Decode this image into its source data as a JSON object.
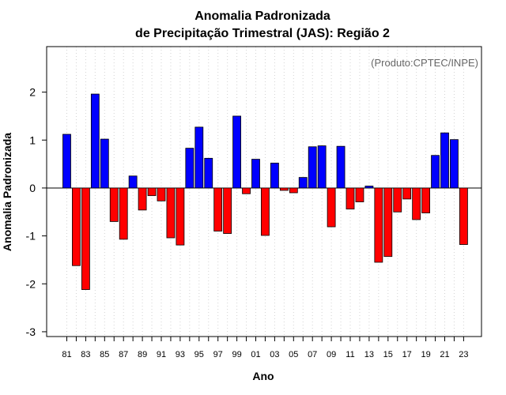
{
  "chart_data": {
    "type": "bar",
    "title_line1": "Anomalia Padronizada",
    "title_line2": "de Precipitação Trimestral (JAS): Região 2",
    "xlabel": "Ano",
    "ylabel": "Anomalia Padronizada",
    "annotation": "(Produto:CPTEC/INPE)",
    "ylim": [
      -3.1,
      2.95
    ],
    "yticks": [
      2,
      1,
      0,
      -1,
      -2,
      -3
    ],
    "xtick_labels": [
      "81",
      "83",
      "85",
      "87",
      "89",
      "91",
      "93",
      "95",
      "97",
      "99",
      "01",
      "03",
      "05",
      "07",
      "09",
      "11",
      "13",
      "15",
      "17",
      "19",
      "21",
      "23"
    ],
    "grid": "vertical dotted",
    "positive_color": "#0000ff",
    "negative_color": "#ff0000",
    "categories": [
      "1981",
      "1982",
      "1983",
      "1984",
      "1985",
      "1986",
      "1987",
      "1988",
      "1989",
      "1990",
      "1991",
      "1992",
      "1993",
      "1994",
      "1995",
      "1996",
      "1997",
      "1998",
      "1999",
      "2000",
      "2001",
      "2002",
      "2003",
      "2004",
      "2005",
      "2006",
      "2007",
      "2008",
      "2009",
      "2010",
      "2011",
      "2012",
      "2013",
      "2014",
      "2015",
      "2016",
      "2017",
      "2018",
      "2019",
      "2020",
      "2021",
      "2022",
      "2023"
    ],
    "values": [
      1.12,
      -1.62,
      -2.12,
      1.96,
      1.02,
      -0.7,
      -1.07,
      0.25,
      -0.46,
      -0.16,
      -0.27,
      -1.04,
      -1.19,
      0.83,
      1.27,
      0.62,
      -0.9,
      -0.95,
      1.5,
      -0.12,
      0.6,
      -0.99,
      0.52,
      -0.05,
      -0.1,
      0.22,
      0.86,
      0.88,
      -0.81,
      0.87,
      -0.44,
      -0.29,
      0.04,
      -1.55,
      -1.43,
      -0.5,
      -0.23,
      -0.66,
      -0.52,
      0.68,
      1.15,
      1.01,
      -1.18
    ]
  }
}
